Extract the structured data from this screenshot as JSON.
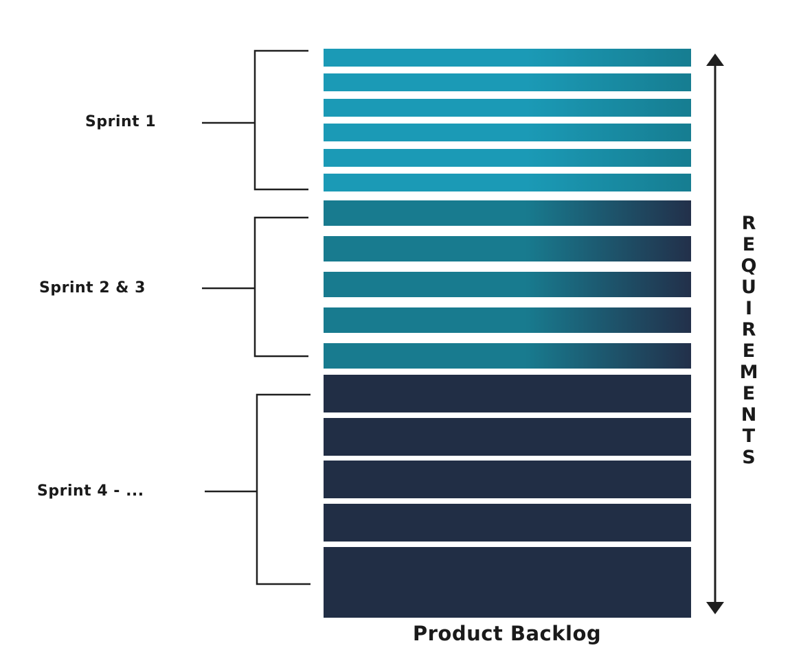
{
  "sprints": [
    {
      "label": "Sprint 1",
      "rows": 6
    },
    {
      "label": "Sprint 2 & 3",
      "rows": 5
    },
    {
      "label": "Sprint 4 - ...",
      "rows": 5
    }
  ],
  "requirements_label": "REQUIREMENTS",
  "backlog_caption": "Product Backlog",
  "colors": {
    "sprint1_start": "#1b9ab6",
    "sprint1_end": "#167d91",
    "sprint23_start": "#187b8f",
    "sprint23_end": "#22304a",
    "sprint4": "#212e45",
    "line": "#1f1f1f"
  }
}
